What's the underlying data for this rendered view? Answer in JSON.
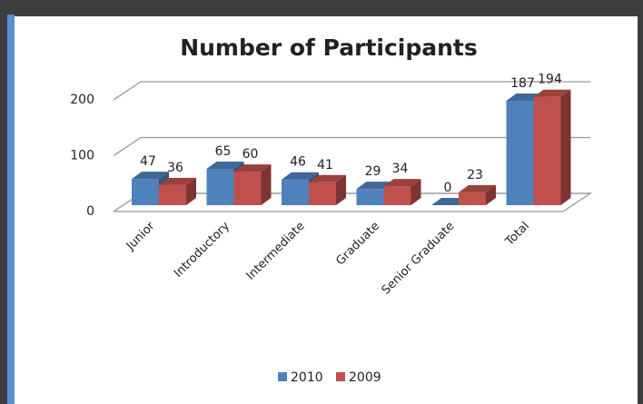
{
  "chart_data": {
    "type": "bar",
    "title": "Number of Participants",
    "categories": [
      "Junior",
      "Introductory",
      "Intermediate",
      "Graduate",
      "Senior Graduate",
      "Total"
    ],
    "series": [
      {
        "name": "2010",
        "color": "#4f81bd",
        "values": [
          47,
          65,
          46,
          29,
          0,
          187
        ]
      },
      {
        "name": "2009",
        "color": "#c0504d",
        "values": [
          36,
          60,
          41,
          34,
          23,
          194
        ]
      }
    ],
    "ylim": [
      0,
      200
    ],
    "yticks": [
      0,
      100,
      200
    ],
    "grid": true,
    "legend": "bottom"
  }
}
